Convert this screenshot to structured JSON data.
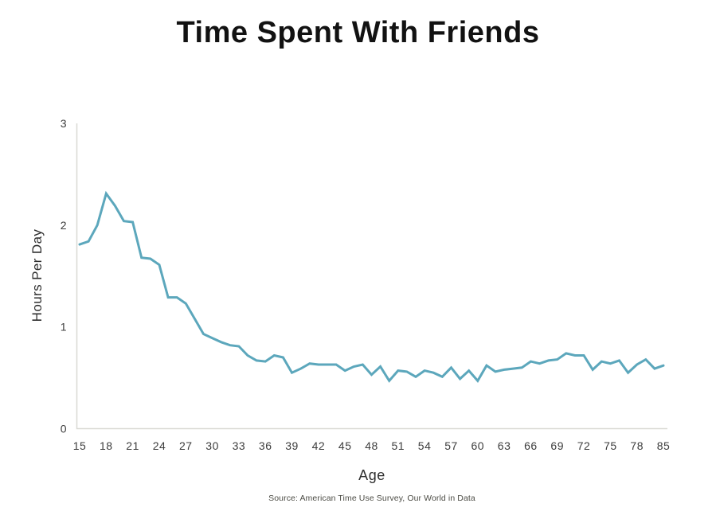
{
  "header": {
    "title": "Time Spent With Friends"
  },
  "footer": {
    "source": "Source: American Time Use Survey, Our World in Data"
  },
  "chart_data": {
    "type": "line",
    "title": "Time Spent With Friends",
    "xlabel": "Age",
    "ylabel": "Hours Per Day",
    "x": [
      15,
      16,
      17,
      18,
      19,
      20,
      21,
      22,
      23,
      24,
      25,
      26,
      27,
      28,
      29,
      30,
      31,
      32,
      33,
      34,
      35,
      36,
      37,
      38,
      39,
      40,
      41,
      42,
      43,
      44,
      45,
      46,
      47,
      48,
      49,
      50,
      51,
      52,
      53,
      54,
      55,
      56,
      57,
      58,
      59,
      60,
      61,
      62,
      63,
      64,
      65,
      66,
      67,
      68,
      69,
      70,
      71,
      72,
      73,
      74,
      75,
      76,
      77,
      78,
      79,
      80,
      85
    ],
    "values": [
      1.81,
      1.84,
      2.0,
      2.31,
      2.19,
      2.04,
      2.03,
      1.68,
      1.67,
      1.61,
      1.29,
      1.29,
      1.23,
      1.08,
      0.93,
      0.89,
      0.85,
      0.82,
      0.81,
      0.72,
      0.67,
      0.66,
      0.72,
      0.7,
      0.55,
      0.59,
      0.64,
      0.63,
      0.63,
      0.63,
      0.57,
      0.61,
      0.63,
      0.53,
      0.61,
      0.47,
      0.57,
      0.56,
      0.51,
      0.57,
      0.55,
      0.51,
      0.6,
      0.49,
      0.57,
      0.47,
      0.62,
      0.56,
      0.58,
      0.59,
      0.6,
      0.66,
      0.64,
      0.67,
      0.68,
      0.74,
      0.72,
      0.72,
      0.58,
      0.66,
      0.64,
      0.67,
      0.55,
      0.63,
      0.68,
      0.59,
      0.62
    ],
    "xtick_labels": [
      "15",
      "18",
      "21",
      "24",
      "27",
      "30",
      "33",
      "36",
      "39",
      "42",
      "45",
      "48",
      "51",
      "54",
      "57",
      "60",
      "63",
      "66",
      "69",
      "72",
      "75",
      "78",
      "85"
    ],
    "yticks": [
      0,
      1,
      2,
      3
    ],
    "ylim": [
      0,
      3
    ],
    "grid": false,
    "legend": false,
    "line_color": "#5CA7BC",
    "axis_color": "#D9D9D4",
    "tick_color": "#3C3C3C"
  }
}
